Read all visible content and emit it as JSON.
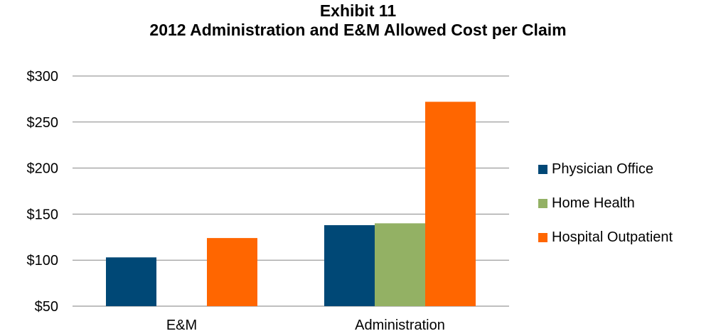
{
  "chart_data": {
    "type": "bar",
    "title": "Exhibit 11",
    "subtitle": "2012 Administration and E&M Allowed Cost per Claim",
    "xlabel": "",
    "ylabel": "",
    "categories": [
      "E&M",
      "Administration"
    ],
    "series": [
      {
        "name": "Physician Office",
        "color": "#004876",
        "values": [
          103,
          138
        ]
      },
      {
        "name": "Home Health",
        "color": "#93B164",
        "values": [
          null,
          140
        ]
      },
      {
        "name": "Hospital Outpatient",
        "color": "#FF6600",
        "values": [
          124,
          272
        ]
      }
    ],
    "ylim": [
      50,
      300
    ],
    "yticks": [
      50,
      100,
      150,
      200,
      250,
      300
    ],
    "ytick_labels": [
      "$50",
      "$100",
      "$150",
      "$200",
      "$250",
      "$300"
    ],
    "grid": true,
    "legend_position": "right"
  }
}
